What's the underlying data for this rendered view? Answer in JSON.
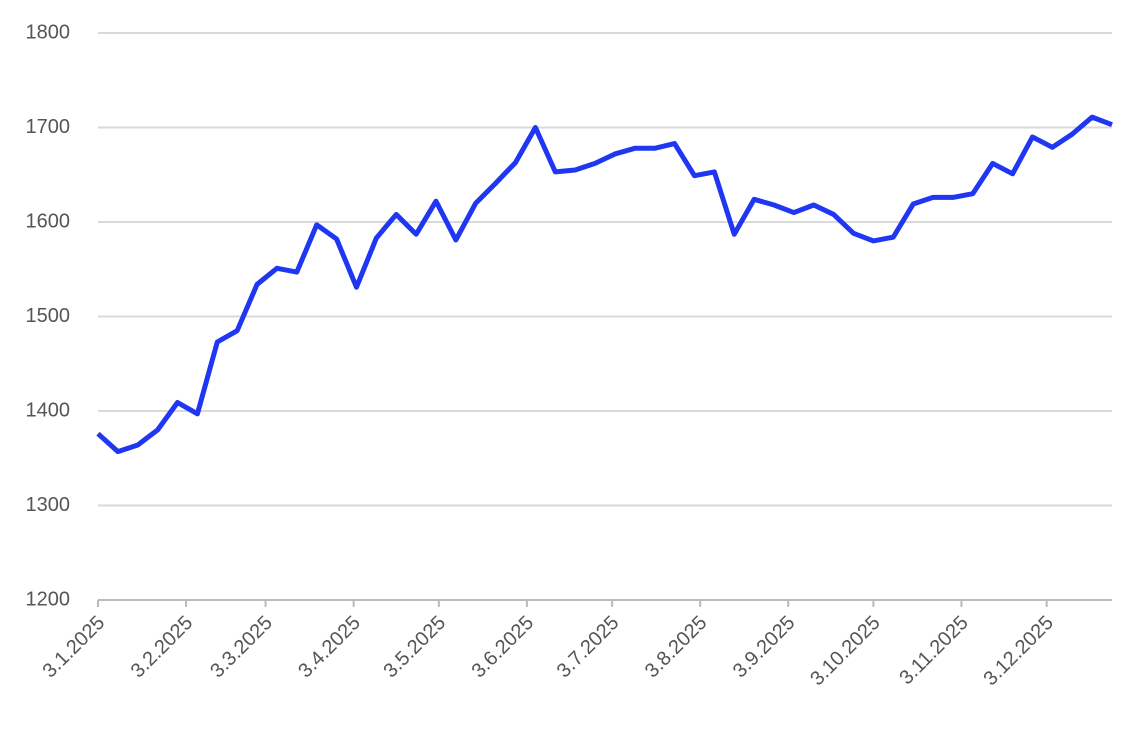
{
  "chart_data": {
    "type": "line",
    "x": [
      "2025-01-03",
      "2025-01-10",
      "2025-01-17",
      "2025-01-24",
      "2025-01-31",
      "2025-02-07",
      "2025-02-14",
      "2025-02-21",
      "2025-02-28",
      "2025-03-07",
      "2025-03-14",
      "2025-03-21",
      "2025-03-28",
      "2025-04-04",
      "2025-04-11",
      "2025-04-18",
      "2025-04-25",
      "2025-05-02",
      "2025-05-09",
      "2025-05-16",
      "2025-05-23",
      "2025-05-30",
      "2025-06-06",
      "2025-06-13",
      "2025-06-20",
      "2025-06-27",
      "2025-07-04",
      "2025-07-11",
      "2025-07-18",
      "2025-07-25",
      "2025-08-01",
      "2025-08-08",
      "2025-08-15",
      "2025-08-22",
      "2025-08-29",
      "2025-09-05",
      "2025-09-12",
      "2025-09-19",
      "2025-09-26",
      "2025-10-03",
      "2025-10-10",
      "2025-10-17",
      "2025-10-24",
      "2025-10-31",
      "2025-11-07",
      "2025-11-14",
      "2025-11-21",
      "2025-11-28",
      "2025-12-05",
      "2025-12-12",
      "2025-12-19",
      "2025-12-26"
    ],
    "series": [
      {
        "color": "#1f36f2",
        "values": [
          1376,
          1357,
          1364,
          1380,
          1409,
          1397,
          1473,
          1485,
          1534,
          1551,
          1547,
          1597,
          1582,
          1531,
          1583,
          1608,
          1587,
          1622,
          1581,
          1620,
          1641,
          1663,
          1700,
          1653,
          1655,
          1662,
          1672,
          1678,
          1678,
          1683,
          1649,
          1653,
          1587,
          1624,
          1618,
          1610,
          1618,
          1608,
          1588,
          1580,
          1584,
          1619,
          1626,
          1626,
          1630,
          1662,
          1651,
          1690,
          1679,
          1693,
          1711,
          1703
        ]
      }
    ],
    "xlim": [
      "2025-01-03",
      "2025-12-26"
    ],
    "xticks": [
      {
        "value": "2025-01-03",
        "label": "3.1.2025"
      },
      {
        "value": "2025-02-03",
        "label": "3.2.2025"
      },
      {
        "value": "2025-03-03",
        "label": "3.3.2025"
      },
      {
        "value": "2025-04-03",
        "label": "3.4.2025"
      },
      {
        "value": "2025-05-03",
        "label": "3.5.2025"
      },
      {
        "value": "2025-06-03",
        "label": "3.6.2025"
      },
      {
        "value": "2025-07-03",
        "label": "3.7.2025"
      },
      {
        "value": "2025-08-03",
        "label": "3.8.2025"
      },
      {
        "value": "2025-09-03",
        "label": "3.9.2025"
      },
      {
        "value": "2025-10-03",
        "label": "3.10.2025"
      },
      {
        "value": "2025-11-03",
        "label": "3.11.2025"
      },
      {
        "value": "2025-12-03",
        "label": "3.12.2025"
      }
    ],
    "ylim": [
      1200,
      1800
    ],
    "yticks": [
      1200,
      1300,
      1400,
      1500,
      1600,
      1700,
      1800
    ],
    "grid": true
  }
}
